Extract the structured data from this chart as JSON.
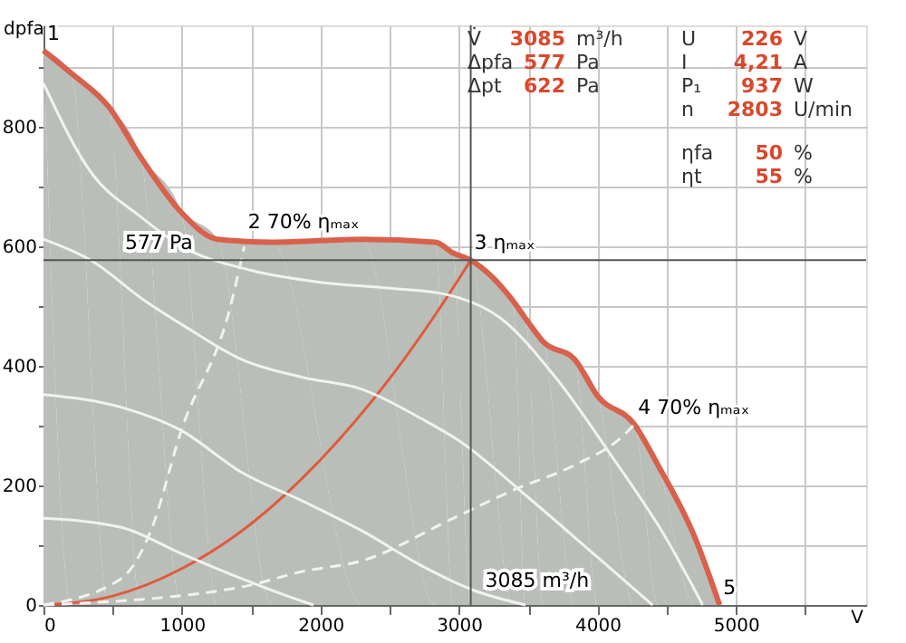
{
  "chart_data": {
    "type": "line",
    "xlabel": "V",
    "ylabel": "dpfa",
    "xlim": [
      0,
      5940
    ],
    "ylim": [
      0,
      970
    ],
    "xticks": [
      0,
      {
        "value": 500,
        "label": null
      },
      1000,
      {
        "value": 1500,
        "label": null
      },
      2000,
      {
        "value": 2500,
        "label": null
      },
      3000,
      {
        "value": 3500,
        "label": null
      },
      4000,
      {
        "value": 4500,
        "label": null
      },
      5000,
      {
        "value": 5500,
        "label": null
      }
    ],
    "yticks": [
      0,
      {
        "value": 100,
        "label": null
      },
      200,
      {
        "value": 300,
        "label": null
      },
      400,
      {
        "value": 500,
        "label": null
      },
      600,
      {
        "value": 700,
        "label": null
      },
      800,
      {
        "value": 900,
        "label": null
      }
    ],
    "grid": true,
    "series": [
      {
        "type": "area",
        "color": "#b9beb9",
        "x": [
          0,
          200,
          470,
          700,
          995,
          1257,
          1650,
          2300,
          2830,
          2958,
          3085,
          3390,
          3482,
          3610,
          3835,
          4000,
          4267,
          4437,
          4700,
          4882
        ],
        "values": [
          928,
          890,
          834,
          750,
          657,
          612,
          607,
          612,
          607,
          589,
          577,
          509,
          479,
          440,
          411,
          350,
          302,
          234,
          115,
          0
        ]
      },
      {
        "color": "#e05a3c",
        "x": [
          0,
          500,
          1000,
          1500,
          2000,
          2500,
          3000,
          3085
        ],
        "values": [
          0,
          15,
          61,
          136,
          243,
          379,
          546,
          577
        ]
      },
      {
        "color": "#f2f2f0",
        "x": [
          0,
          340,
          700,
          1000,
          1500,
          2000,
          2500,
          2900,
          3300,
          3700,
          4100,
          4500,
          4760
        ],
        "values": [
          873,
          725,
          650,
          600,
          560,
          540,
          530,
          520,
          480,
          380,
          250,
          110,
          0
        ]
      },
      {
        "color": "#f2f2f0",
        "x": [
          0,
          340,
          733,
          995,
          1430,
          1870,
          2300,
          2735,
          3000,
          3500,
          4000,
          4398
        ],
        "values": [
          612,
          577,
          509,
          470,
          411,
          381,
          361,
          311,
          275,
          180,
          80,
          0
        ]
      },
      {
        "color": "#f2f2f0",
        "x": [
          0,
          560,
          995,
          1430,
          1870,
          2300,
          2735,
          3100,
          3480
        ],
        "values": [
          352,
          331,
          292,
          222,
          174,
          124,
          65,
          25,
          0
        ]
      },
      {
        "color": "#f2f2f0",
        "x": [
          0,
          560,
          995,
          1430,
          1870,
          1950
        ],
        "values": [
          145,
          130,
          86,
          44,
          6,
          0
        ]
      },
      {
        "color": "#f2f2f0",
        "line_style": "dashed",
        "x": [
          0,
          560,
          775,
          995,
          1350,
          1450
        ],
        "values": [
          0,
          44,
          124,
          292,
          500,
          600
        ]
      },
      {
        "color": "#f2f2f0",
        "line_style": "dashed",
        "x": [
          0,
          1430,
          1870,
          2300,
          2958,
          3390,
          3835,
          4175,
          4267
        ],
        "values": [
          0,
          30,
          56,
          74,
          145,
          192,
          234,
          281,
          302
        ]
      }
    ],
    "ref_lines": [
      {
        "axis": "x",
        "value": 3085,
        "label": "3085 m³/h",
        "color": "#555555"
      },
      {
        "axis": "y",
        "value": 577,
        "label": "577 Pa",
        "color": "#555555"
      }
    ],
    "annotations": [
      "V̇ 3085 m³/h",
      "Δpfa 577 Pa",
      "Δpt 622 Pa",
      "U 226 V",
      "I 4,21 A",
      "P₁ 937 W",
      "n 2803 U/min",
      "ηfa 50 %",
      "ηt 55 %",
      {
        "text": "1",
        "x": 0,
        "y": 928
      },
      {
        "text": "2 70% ηₘₐₓ",
        "x": 1450,
        "y": 612
      },
      {
        "text": "3 ηₘₐₓ",
        "x": 3085,
        "y": 577
      },
      {
        "text": "4 70% ηₘₐₓ",
        "x": 4267,
        "y": 302
      },
      {
        "text": "5",
        "x": 4882,
        "y": 0
      }
    ]
  }
}
